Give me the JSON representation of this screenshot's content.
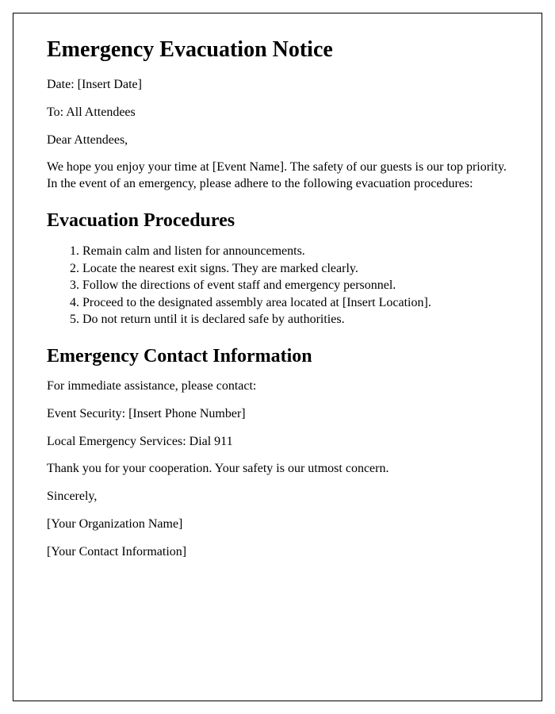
{
  "title": "Emergency Evacuation Notice",
  "dateLine": "Date: [Insert Date]",
  "toLine": "To: All Attendees",
  "salutation": "Dear Attendees,",
  "intro": "We hope you enjoy your time at [Event Name]. The safety of our guests is our top priority. In the event of an emergency, please adhere to the following evacuation procedures:",
  "proceduresHeading": "Evacuation Procedures",
  "procedures": [
    "Remain calm and listen for announcements.",
    "Locate the nearest exit signs. They are marked clearly.",
    "Follow the directions of event staff and emergency personnel.",
    "Proceed to the designated assembly area located at [Insert Location].",
    "Do not return until it is declared safe by authorities."
  ],
  "contactHeading": "Emergency Contact Information",
  "contactIntro": "For immediate assistance, please contact:",
  "eventSecurity": "Event Security: [Insert Phone Number]",
  "emergencyServices": "Local Emergency Services: Dial 911",
  "thanks": "Thank you for your cooperation. Your safety is our utmost concern.",
  "closing": "Sincerely,",
  "orgName": "[Your Organization Name]",
  "contactInfo": "[Your Contact Information]"
}
